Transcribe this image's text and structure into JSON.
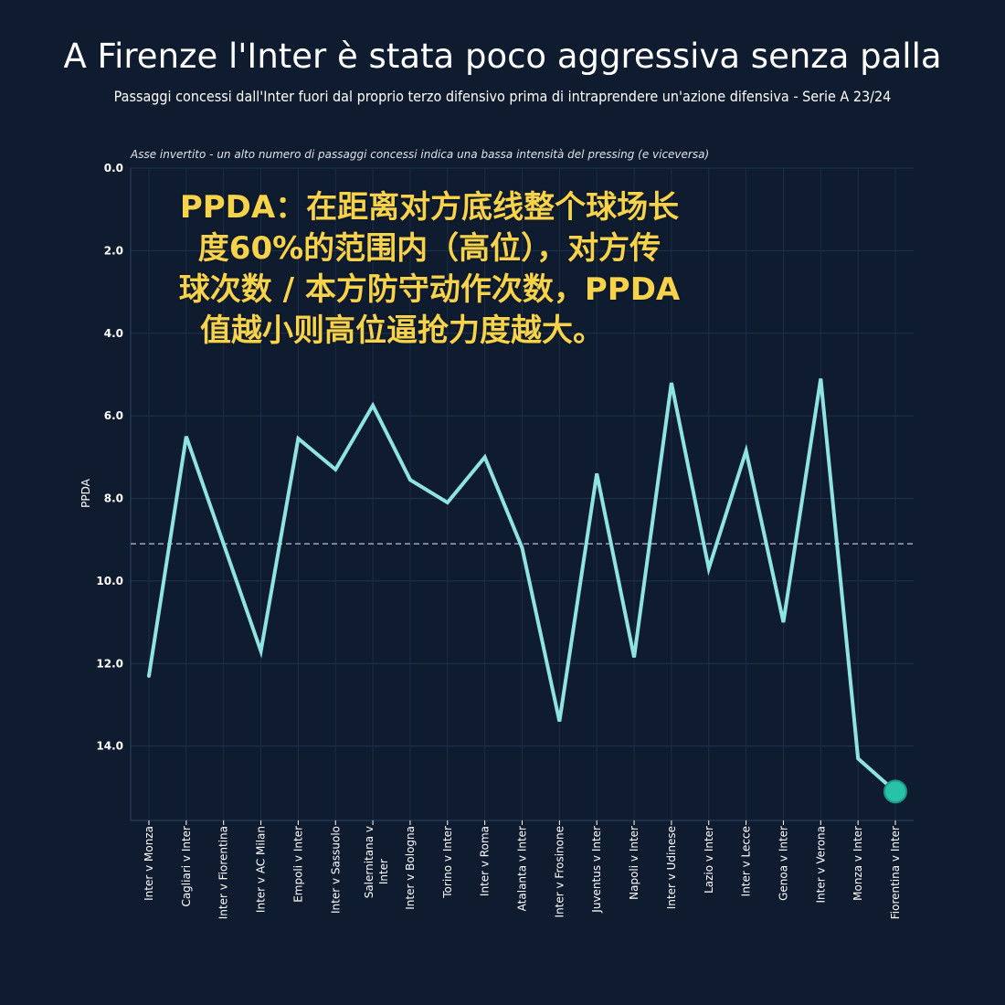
{
  "title": "A Firenze l'Inter è stata poco aggressiva senza palla",
  "subtitle": "Passaggi concessi dall'Inter fuori dal proprio terzo difensivo prima di intraprendere un'azione difensiva - Serie A 23/24",
  "note": "Asse invertito - un alto numero di passaggi concessi indica una bassa intensità del pressing (e viceversa)",
  "overlay_text": [
    "PPDA：在距离对方底线整个球场长",
    "度60%的范围内（高位），对方传",
    "球次数 / 本方防守动作次数，PPDA",
    "值越小则高位逼抢力度越大。"
  ],
  "colors": {
    "background": "#0f1b2f",
    "line": "#8fe3e3",
    "highlight_marker": "#27c2a8",
    "average_line": "#9aa3c0",
    "overlay_text": "#f6d34a"
  },
  "chart_data": {
    "type": "line",
    "ylabel": "PPDA",
    "y_inverted": true,
    "ylim": [
      0,
      15.8
    ],
    "yticks": [
      "0.0",
      "2.0",
      "4.0",
      "6.0",
      "8.0",
      "10.0",
      "12.0",
      "14.0"
    ],
    "yticks_values": [
      0,
      2,
      4,
      6,
      8,
      10,
      12,
      14
    ],
    "average_line": 9.1,
    "categories": [
      "Inter v Monza",
      "Cagliari v Inter",
      "Inter v Fiorentina",
      "Inter v AC Milan",
      "Empoli v Inter",
      "Inter v Sassuolo",
      "Salernitana v Inter",
      "Inter v Bologna",
      "Torino v Inter",
      "Inter v Roma",
      "Atalanta v Inter",
      "Inter v Frosinone",
      "Juventus v Inter",
      "Napoli v Inter",
      "Inter v Udinese",
      "Lazio v Inter",
      "Inter v Lecce",
      "Genoa v Inter",
      "Inter v Verona",
      "Monza v Inter",
      "Fiorentina v Inter"
    ],
    "series": [
      {
        "values": [
          12.3,
          6.5,
          9.1,
          11.7,
          6.55,
          7.3,
          5.75,
          7.55,
          8.1,
          7.0,
          9.2,
          13.4,
          7.4,
          11.85,
          5.2,
          9.7,
          6.85,
          11.0,
          5.1,
          14.3,
          15.1
        ]
      }
    ],
    "highlight": {
      "category": "Fiorentina v Inter",
      "value": 15.1
    },
    "grid": true
  }
}
